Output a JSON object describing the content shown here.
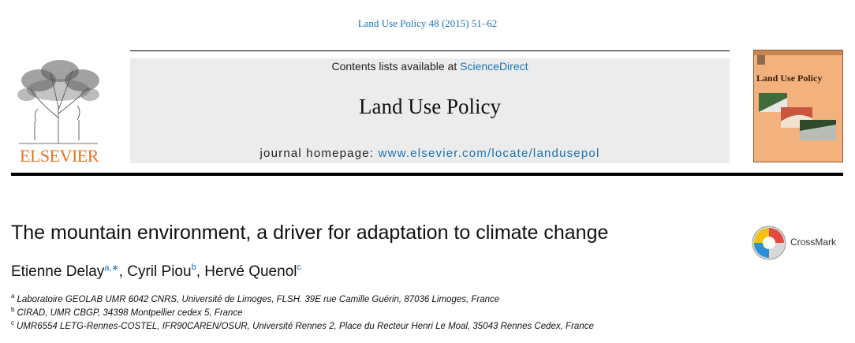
{
  "header": {
    "citation": "Land Use Policy 48 (2015) 51–62",
    "contents_prefix": "Contents lists available at",
    "contents_link": "ScienceDirect",
    "journal_title": "Land Use Policy",
    "homepage_prefix": "journal homepage:",
    "homepage_link": "www.elsevier.com/locate/landusepol",
    "publisher": "ELSEVIER",
    "cover_title": "Land Use Policy"
  },
  "crossmark": "CrossMark",
  "article": {
    "title": "The mountain environment, a driver for adaptation to climate change",
    "authors": [
      {
        "name": "Etienne Delay",
        "sup": "a,∗",
        "sep": ", "
      },
      {
        "name": "Cyril Piou",
        "sup": "b",
        "sep": ", "
      },
      {
        "name": "Hervé Quenol",
        "sup": "c",
        "sep": ""
      }
    ],
    "affiliations": [
      {
        "mark": "a",
        "text": "Laboratoire GEOLAB UMR 6042 CNRS, Université de Limoges, FLSH. 39E rue Camille Guérin, 87036 Limoges, France"
      },
      {
        "mark": "b",
        "text": "CIRAD, UMR CBGP, 34398 Montpellier cedex 5, France"
      },
      {
        "mark": "c",
        "text": "UMR6554 LETG-Rennes-COSTEL, IFR90CAREN/OSUR, Université Rennes 2, Place du Recteur Henri Le Moal, 35043 Rennes Cedex, France"
      }
    ]
  },
  "colors": {
    "link": "#1a73b8",
    "elsevier": "#e9711c",
    "masthead_bg": "#ececec",
    "cover_bg": "#f3b27d"
  }
}
